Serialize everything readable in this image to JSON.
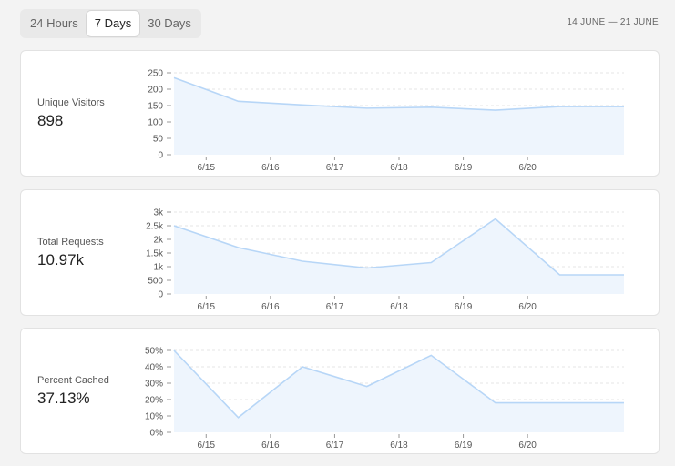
{
  "range_tabs": [
    {
      "label": "24 Hours",
      "active": false
    },
    {
      "label": "7 Days",
      "active": true
    },
    {
      "label": "30 Days",
      "active": false
    }
  ],
  "date_range": "14 JUNE — 21 JUNE",
  "colors": {
    "line": "#b7d6f7",
    "area": "#eef5fd"
  },
  "cards": [
    {
      "label": "Unique Visitors",
      "value": "898"
    },
    {
      "label": "Total Requests",
      "value": "10.97k"
    },
    {
      "label": "Percent Cached",
      "value": "37.13%"
    }
  ],
  "chart_data": [
    {
      "type": "area",
      "x": [
        "6/14 12:00",
        "6/15 12:00",
        "6/16 12:00",
        "6/17 12:00",
        "6/18 12:00",
        "6/19 12:00",
        "6/20 12:00",
        "6/21 12:00"
      ],
      "y": [
        235,
        163,
        152,
        142,
        145,
        136,
        147,
        147
      ],
      "x_ticks": [
        "6/15",
        "6/16",
        "6/17",
        "6/18",
        "6/19",
        "6/20"
      ],
      "y_ticks": [
        0,
        50,
        100,
        150,
        200,
        250
      ],
      "y_tick_labels": [
        "0",
        "50",
        "100",
        "150",
        "200",
        "250"
      ],
      "ylim": [
        0,
        250
      ],
      "grid": true
    },
    {
      "type": "area",
      "x": [
        "6/14 12:00",
        "6/15 12:00",
        "6/16 12:00",
        "6/17 12:00",
        "6/18 12:00",
        "6/19 12:00",
        "6/20 12:00",
        "6/21 12:00"
      ],
      "y": [
        2500,
        1700,
        1200,
        950,
        1150,
        2750,
        700,
        700
      ],
      "x_ticks": [
        "6/15",
        "6/16",
        "6/17",
        "6/18",
        "6/19",
        "6/20"
      ],
      "y_ticks": [
        0,
        500,
        1000,
        1500,
        2000,
        2500,
        3000
      ],
      "y_tick_labels": [
        "0",
        "500",
        "1k",
        "1.5k",
        "2k",
        "2.5k",
        "3k"
      ],
      "ylim": [
        0,
        3000
      ],
      "grid": true
    },
    {
      "type": "area",
      "x": [
        "6/14 12:00",
        "6/15 12:00",
        "6/16 12:00",
        "6/17 12:00",
        "6/18 12:00",
        "6/19 12:00",
        "6/20 12:00",
        "6/21 12:00"
      ],
      "y": [
        50,
        9,
        40,
        28,
        47,
        18,
        18,
        18
      ],
      "x_ticks": [
        "6/15",
        "6/16",
        "6/17",
        "6/18",
        "6/19",
        "6/20"
      ],
      "y_ticks": [
        0,
        10,
        20,
        30,
        40,
        50
      ],
      "y_tick_labels": [
        "0%",
        "10%",
        "20%",
        "30%",
        "40%",
        "50%"
      ],
      "ylim": [
        0,
        50
      ],
      "grid": true
    }
  ]
}
